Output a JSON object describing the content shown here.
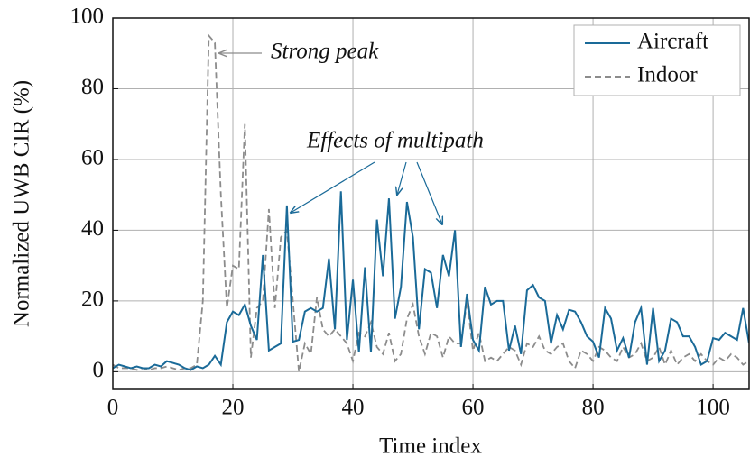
{
  "chart_data": {
    "type": "line",
    "xlabel": "Time index",
    "ylabel": "Normalized UWB CIR (%)",
    "x": [
      0,
      1,
      2,
      3,
      4,
      5,
      6,
      7,
      8,
      9,
      10,
      11,
      12,
      13,
      14,
      15,
      16,
      17,
      18,
      19,
      20,
      21,
      22,
      23,
      24,
      25,
      26,
      27,
      28,
      29,
      30,
      31,
      32,
      33,
      34,
      35,
      36,
      37,
      38,
      39,
      40,
      41,
      42,
      43,
      44,
      45,
      46,
      47,
      48,
      49,
      50,
      51,
      52,
      53,
      54,
      55,
      56,
      57,
      58,
      59,
      60,
      61,
      62,
      63,
      64,
      65,
      66,
      67,
      68,
      69,
      70,
      71,
      72,
      73,
      74,
      75,
      76,
      77,
      78,
      79,
      80,
      81,
      82,
      83,
      84,
      85,
      86,
      87,
      88,
      89,
      90,
      91,
      92,
      93,
      94,
      95,
      96,
      97,
      98,
      99,
      100,
      101,
      102,
      103,
      104,
      105,
      106
    ],
    "series": [
      {
        "name": "Aircraft",
        "color": "#1a6a98",
        "dashed": false,
        "values": [
          1,
          2,
          1.5,
          1,
          1.5,
          1,
          1,
          2,
          1.5,
          3,
          2.5,
          2,
          1,
          0.5,
          1.5,
          1,
          2,
          4.5,
          2,
          14,
          17,
          16,
          19,
          13,
          9,
          33,
          6,
          7,
          8,
          47,
          8.5,
          9,
          17,
          18,
          17,
          18,
          32,
          12,
          51,
          9,
          26,
          5.5,
          29.5,
          5.5,
          43,
          27,
          49,
          15,
          24,
          48,
          38,
          12,
          29,
          28,
          18,
          33,
          27,
          40,
          7,
          22,
          9,
          6,
          24,
          19,
          20,
          20,
          6,
          13,
          5,
          23,
          24.5,
          21,
          20,
          8,
          16,
          12,
          17.5,
          17,
          14,
          10,
          8.5,
          4,
          18,
          15,
          6,
          9.5,
          4,
          14,
          18,
          2,
          18,
          3,
          6,
          15,
          14,
          10,
          10,
          7,
          2,
          3,
          9.5,
          9,
          11,
          10,
          9,
          18,
          8
        ]
      },
      {
        "name": "Indoor",
        "color": "#8c8c8c",
        "dashed": true,
        "values": [
          2,
          1,
          1,
          1,
          0.5,
          1,
          0.5,
          1,
          1,
          1.5,
          1,
          0.5,
          1,
          1,
          2,
          20,
          95,
          93,
          50,
          18,
          30,
          29,
          70,
          4,
          18,
          20,
          46,
          18,
          38,
          40,
          20,
          0,
          8,
          5,
          21,
          12,
          10,
          12,
          10,
          8,
          3,
          11,
          10,
          14,
          7,
          5,
          11,
          3,
          5,
          15,
          19,
          10,
          5,
          11,
          10,
          4,
          10,
          8,
          8,
          20,
          6,
          11,
          3,
          4,
          3,
          5,
          7,
          6,
          2,
          8,
          7,
          10,
          6,
          5,
          7,
          8,
          3,
          1,
          6,
          5,
          3,
          7,
          6,
          4,
          3,
          7,
          4,
          5,
          8,
          3,
          4,
          7,
          2,
          6,
          2,
          4,
          5,
          3,
          5,
          3,
          2,
          4,
          3,
          5,
          4,
          2,
          3
        ]
      }
    ],
    "xlim": [
      0,
      106
    ],
    "xticks": [
      0,
      20,
      40,
      60,
      80,
      100
    ],
    "ylim": [
      -5,
      100
    ],
    "yticks": [
      0,
      20,
      40,
      60,
      80,
      100
    ],
    "grid": true,
    "legend": "upper right",
    "annotations": [
      {
        "text": "Strong peak",
        "color": "#8c8c8c"
      },
      {
        "text": "Effects of multipath",
        "color": "#1a6a98"
      }
    ]
  }
}
